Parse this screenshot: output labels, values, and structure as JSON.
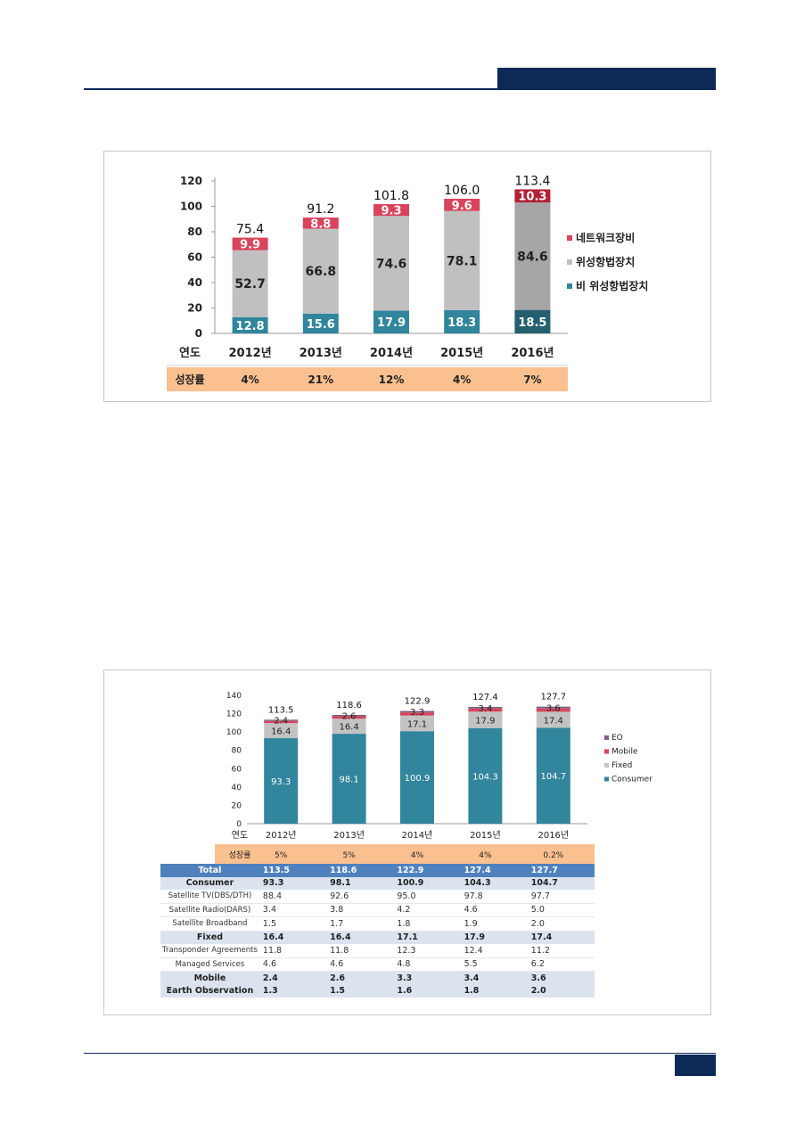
{
  "chart_data": [
    {
      "type": "bar",
      "stacked": true,
      "categories": [
        "2012년",
        "2013년",
        "2014년",
        "2015년",
        "2016년"
      ],
      "series": [
        {
          "name": "비 위성항법장치",
          "values": [
            12.8,
            15.6,
            17.9,
            18.3,
            18.5
          ],
          "color": "#31859c"
        },
        {
          "name": "위성항법장치",
          "values": [
            52.7,
            66.8,
            74.6,
            78.1,
            84.6
          ],
          "color": "#c0c0c0"
        },
        {
          "name": "네트워크장비",
          "values": [
            9.9,
            8.8,
            9.3,
            9.6,
            10.3
          ],
          "color": "#d9435c"
        }
      ],
      "last_colors": [
        "#245f70",
        "#a6a6a6",
        "#b32036"
      ],
      "totals": [
        "75.4",
        "91.2",
        "101.8",
        "106.0",
        "113.4"
      ],
      "ylim": [
        0,
        120
      ],
      "yticks": [
        0,
        20,
        40,
        60,
        80,
        100,
        120
      ],
      "row_label": "연도",
      "growth_label": "성장률",
      "growth": [
        "4%",
        "21%",
        "12%",
        "4%",
        "7%"
      ],
      "legend": [
        "네트워크장비",
        "위성항법장치",
        "비 위성항법장치"
      ],
      "legend_position": "right"
    },
    {
      "type": "bar",
      "stacked": true,
      "categories": [
        "2012년",
        "2013년",
        "2014년",
        "2015년",
        "2016년"
      ],
      "series": [
        {
          "name": "Consumer",
          "values": [
            93.3,
            98.1,
            100.9,
            104.3,
            104.7
          ],
          "color": "#31859c"
        },
        {
          "name": "Fixed",
          "values": [
            16.4,
            16.4,
            17.1,
            17.9,
            17.4
          ],
          "color": "#c3c3c3"
        },
        {
          "name": "Mobile",
          "values": [
            2.4,
            2.6,
            3.3,
            3.4,
            3.6
          ],
          "color": "#d9435c"
        },
        {
          "name": "EO",
          "values": [
            1.3,
            1.5,
            1.6,
            1.8,
            2.0
          ],
          "color": "#7e5f7e"
        }
      ],
      "totals": [
        "113.5",
        "118.6",
        "122.9",
        "127.4",
        "127.7"
      ],
      "ylim": [
        0,
        140
      ],
      "yticks": [
        0,
        20,
        40,
        60,
        80,
        100,
        120,
        140
      ],
      "row_label": "연도",
      "growth_label": "성장률",
      "growth": [
        "5%",
        "5%",
        "4%",
        "4%",
        "0.2%"
      ],
      "legend": [
        "EO",
        "Mobile",
        "Fixed",
        "Consumer"
      ],
      "legend_position": "right",
      "table": {
        "rows": [
          {
            "label": "Total",
            "style": "total",
            "values": [
              "113.5",
              "118.6",
              "122.9",
              "127.4",
              "127.7"
            ]
          },
          {
            "label": "Consumer",
            "style": "main",
            "values": [
              "93.3",
              "98.1",
              "100.9",
              "104.3",
              "104.7"
            ]
          },
          {
            "label": "Satellite  TV(DBS/DTH)",
            "style": "sub",
            "values": [
              "88.4",
              "92.6",
              "95.0",
              "97.8",
              "97.7"
            ]
          },
          {
            "label": "Satellite  Radio(DARS)",
            "style": "sub",
            "values": [
              "3.4",
              "3.8",
              "4.2",
              "4.6",
              "5.0"
            ]
          },
          {
            "label": "Satellite  Broadband",
            "style": "sub",
            "values": [
              "1.5",
              "1.7",
              "1.8",
              "1.9",
              "2.0"
            ]
          },
          {
            "label": "Fixed",
            "style": "main",
            "values": [
              "16.4",
              "16.4",
              "17.1",
              "17.9",
              "17.4"
            ]
          },
          {
            "label": "Transponder Agreements",
            "style": "sub",
            "values": [
              "11.8",
              "11.8",
              "12.3",
              "12.4",
              "11.2"
            ]
          },
          {
            "label": "Managed Services",
            "style": "sub",
            "values": [
              "4.6",
              "4.6",
              "4.8",
              "5.5",
              "6.2"
            ]
          },
          {
            "label": "Mobile",
            "style": "main",
            "values": [
              "2.4",
              "2.6",
              "3.3",
              "3.4",
              "3.6"
            ]
          },
          {
            "label": "Earth Observation",
            "style": "main",
            "values": [
              "1.3",
              "1.5",
              "1.6",
              "1.8",
              "2.0"
            ]
          }
        ]
      }
    }
  ]
}
